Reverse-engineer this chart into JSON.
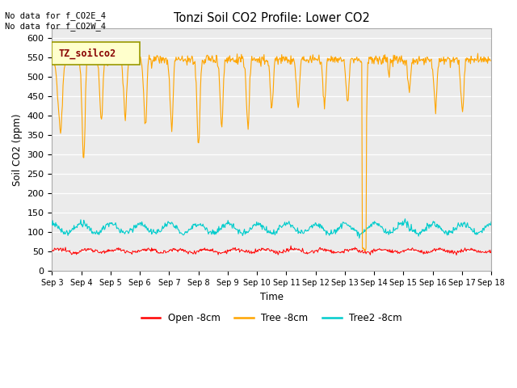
{
  "title": "Tonzi Soil CO2 Profile: Lower CO2",
  "ylabel": "Soil CO2 (ppm)",
  "xlabel": "Time",
  "header_text": "No data for f_CO2E_4\nNo data for f_CO2W_4",
  "legend_label": "TZ_soilco2",
  "ylim": [
    0,
    625
  ],
  "yticks": [
    0,
    50,
    100,
    150,
    200,
    250,
    300,
    350,
    400,
    450,
    500,
    550,
    600
  ],
  "xtick_labels": [
    "Sep 3",
    "Sep 4",
    "Sep 5",
    "Sep 6",
    "Sep 7",
    "Sep 8",
    "Sep 9",
    "Sep 10",
    "Sep 11",
    "Sep 12",
    "Sep 13",
    "Sep 14",
    "Sep 15",
    "Sep 16",
    "Sep 17",
    "Sep 18"
  ],
  "colors": {
    "open": "#FF0000",
    "tree": "#FFA500",
    "tree2": "#00CCCC",
    "background": "#EBEBEB",
    "legend_box": "#FFFFCC",
    "legend_border": "#999900"
  },
  "legend_entries": [
    {
      "label": "Open -8cm",
      "color": "#FF0000"
    },
    {
      "label": "Tree -8cm",
      "color": "#FFA500"
    },
    {
      "label": "Tree2 -8cm",
      "color": "#00CCCC"
    }
  ],
  "figsize": [
    6.4,
    4.8
  ],
  "dpi": 100
}
